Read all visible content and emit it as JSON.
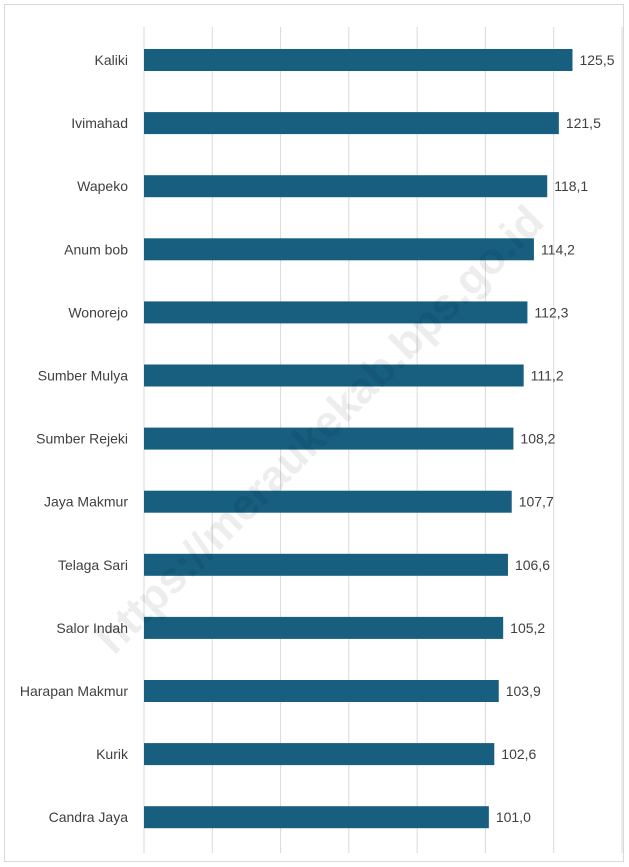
{
  "chart_data": {
    "type": "bar",
    "orientation": "horizontal",
    "categories": [
      "Kaliki",
      "Ivimahad",
      "Wapeko",
      "Anum bob",
      "Wonorejo",
      "Sumber Mulya",
      "Sumber Rejeki",
      "Jaya Makmur",
      "Telaga Sari",
      "Salor Indah",
      "Harapan Makmur",
      "Kurik",
      "Candra Jaya"
    ],
    "values": [
      125.5,
      121.5,
      118.1,
      114.2,
      112.3,
      111.2,
      108.2,
      107.7,
      106.6,
      105.2,
      103.9,
      102.6,
      101.0
    ],
    "value_labels": [
      "125,5",
      "121,5",
      "118,1",
      "114,2",
      "112,3",
      "111,2",
      "108,2",
      "107,7",
      "106,6",
      "105,2",
      "103,9",
      "102,6",
      "101,0"
    ],
    "title": "",
    "xlabel": "",
    "ylabel": "",
    "xlim": [
      0,
      140
    ],
    "grid": true,
    "legend": "none",
    "bar_color": "#175e7f"
  },
  "watermark": "https://meraukekab.bps.go.id"
}
